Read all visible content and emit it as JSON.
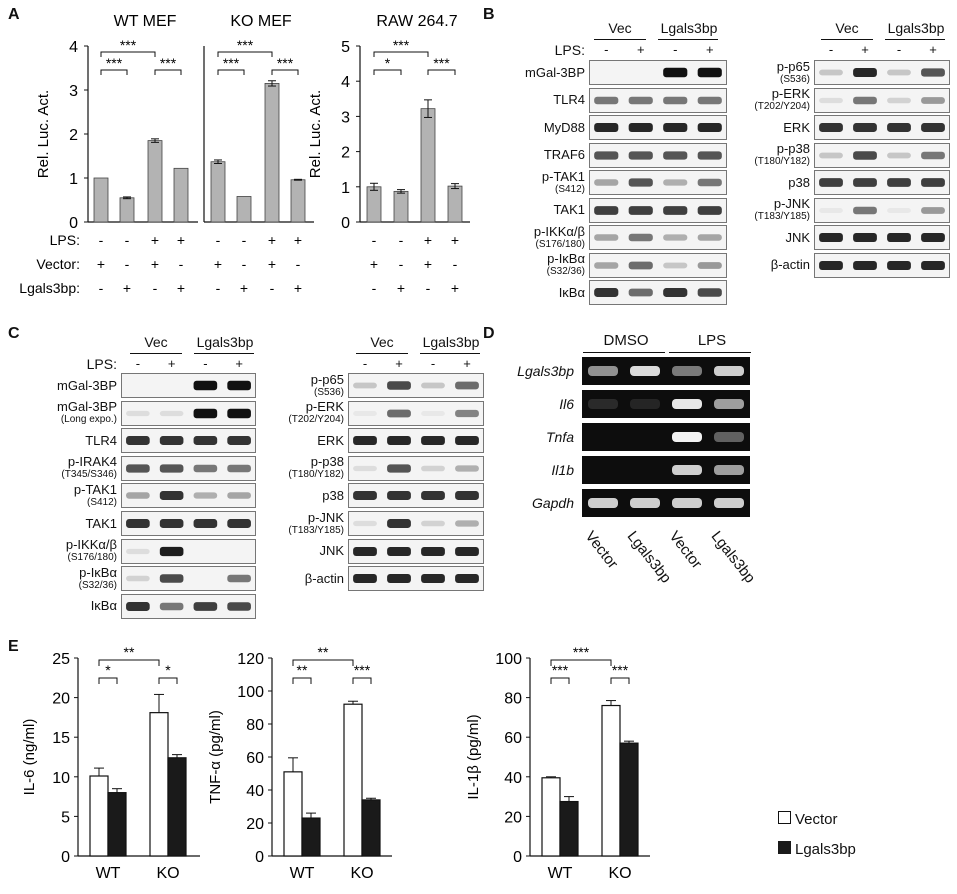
{
  "panels": {
    "a": "A",
    "b": "B",
    "c": "C",
    "d": "D",
    "e": "E"
  },
  "panel_a": {
    "rows": {
      "lps": "LPS:",
      "vector": "Vector:",
      "lgals": "Lgals3bp:"
    },
    "signs": {
      "minus": "-",
      "plus": "+"
    },
    "chart_data": [
      {
        "type": "bar",
        "title": "WT MEF",
        "ylabel": "Rel. Luc. Act.",
        "ylim": [
          0,
          4
        ],
        "yticks": [
          0,
          1,
          2,
          3,
          4
        ],
        "values": [
          1.0,
          0.55,
          1.85,
          1.22
        ],
        "errors": [
          0,
          0.02,
          0.04,
          0
        ],
        "brackets": [
          "***",
          "***",
          "***"
        ]
      },
      {
        "type": "bar",
        "title": "KO MEF",
        "ylabel": "",
        "ylim": [
          0,
          4
        ],
        "yticks": [],
        "values": [
          1.37,
          0.58,
          3.15,
          0.96
        ],
        "errors": [
          0.04,
          0,
          0.06,
          0.01
        ],
        "brackets": [
          "***",
          "***",
          "***"
        ]
      },
      {
        "type": "bar",
        "title": "RAW 264.7",
        "ylabel": "Rel. Luc. Act.",
        "ylim": [
          0,
          5
        ],
        "yticks": [
          0,
          1,
          2,
          3,
          4,
          5
        ],
        "values": [
          1.0,
          0.87,
          3.22,
          1.02
        ],
        "errors": [
          0.1,
          0.05,
          0.25,
          0.07
        ],
        "brackets": [
          "*",
          "***",
          "***"
        ]
      }
    ]
  },
  "panel_b": {
    "header": {
      "vec": "Vec",
      "lgals": "Lgals3bp",
      "lps": "LPS:"
    },
    "left_blots": [
      {
        "name": "mGal-3BP",
        "site": ""
      },
      {
        "name": "TLR4",
        "site": ""
      },
      {
        "name": "MyD88",
        "site": ""
      },
      {
        "name": "TRAF6",
        "site": ""
      },
      {
        "name": "p-TAK1",
        "site": "(S412)"
      },
      {
        "name": "TAK1",
        "site": ""
      },
      {
        "name": "p-IKKα/β",
        "site": "(S176/180)"
      },
      {
        "name": "p-IκBα",
        "site": "(S32/36)"
      },
      {
        "name": "IκBα",
        "site": ""
      }
    ],
    "right_blots": [
      {
        "name": "p-p65",
        "site": "(S536)"
      },
      {
        "name": "p-ERK",
        "site": "(T202/Y204)"
      },
      {
        "name": "ERK",
        "site": ""
      },
      {
        "name": "p-p38",
        "site": "(T180/Y182)"
      },
      {
        "name": "p38",
        "site": ""
      },
      {
        "name": "p-JNK",
        "site": "(T183/Y185)"
      },
      {
        "name": "JNK",
        "site": ""
      },
      {
        "name": "β-actin",
        "site": ""
      }
    ]
  },
  "panel_c": {
    "header": {
      "vec": "Vec",
      "lgals": "Lgals3bp",
      "lps": "LPS:"
    },
    "left_blots": [
      {
        "name": "mGal-3BP",
        "site": ""
      },
      {
        "name": "mGal-3BP",
        "site": "(Long expo.)"
      },
      {
        "name": "TLR4",
        "site": ""
      },
      {
        "name": "p-IRAK4",
        "site": "(T345/S346)"
      },
      {
        "name": "p-TAK1",
        "site": "(S412)"
      },
      {
        "name": "TAK1",
        "site": ""
      },
      {
        "name": "p-IKKα/β",
        "site": "(S176/180)"
      },
      {
        "name": "p-IκBα",
        "site": "(S32/36)"
      },
      {
        "name": "IκBα",
        "site": ""
      }
    ],
    "right_blots": [
      {
        "name": "p-p65",
        "site": "(S536)"
      },
      {
        "name": "p-ERK",
        "site": "(T202/Y204)"
      },
      {
        "name": "ERK",
        "site": ""
      },
      {
        "name": "p-p38",
        "site": "(T180/Y182)"
      },
      {
        "name": "p38",
        "site": ""
      },
      {
        "name": "p-JNK",
        "site": "(T183/Y185)"
      },
      {
        "name": "JNK",
        "site": ""
      },
      {
        "name": "β-actin",
        "site": ""
      }
    ]
  },
  "panel_d": {
    "header": {
      "dmso": "DMSO",
      "lps": "LPS"
    },
    "genes": [
      "Lgals3bp",
      "Il6",
      "Tnfa",
      "Il1b",
      "Gapdh"
    ],
    "lanes": [
      "Vector",
      "Lgals3bp",
      "Vector",
      "Lgals3bp"
    ]
  },
  "panel_e": {
    "legend": {
      "vector": "Vector",
      "lgals": "Lgals3bp"
    },
    "chart_data": [
      {
        "type": "bar",
        "ylabel": "IL-6 (ng/ml)",
        "ylim": [
          0,
          25
        ],
        "yticks": [
          0,
          5,
          10,
          15,
          20,
          25
        ],
        "categories": [
          "WT",
          "KO"
        ],
        "series": [
          {
            "name": "Vector",
            "values": [
              10.1,
              18.1
            ],
            "errors": [
              1.0,
              2.3
            ]
          },
          {
            "name": "Lgals3bp",
            "values": [
              8.0,
              12.4
            ],
            "errors": [
              0.5,
              0.4
            ]
          }
        ],
        "brackets": [
          "*",
          "*",
          "**"
        ]
      },
      {
        "type": "bar",
        "ylabel": "TNF-α (pg/ml)",
        "ylim": [
          0,
          120
        ],
        "yticks": [
          0,
          20,
          40,
          60,
          80,
          100,
          120
        ],
        "categories": [
          "WT",
          "KO"
        ],
        "series": [
          {
            "name": "Vector",
            "values": [
              51,
              92
            ],
            "errors": [
              8.5,
              1.8
            ]
          },
          {
            "name": "Lgals3bp",
            "values": [
              23,
              34
            ],
            "errors": [
              3,
              1
            ]
          }
        ],
        "brackets": [
          "**",
          "***",
          "**"
        ]
      },
      {
        "type": "bar",
        "ylabel": "IL-1β (pg/ml)",
        "ylim": [
          0,
          100
        ],
        "yticks": [
          0,
          20,
          40,
          60,
          80,
          100
        ],
        "categories": [
          "WT",
          "KO"
        ],
        "series": [
          {
            "name": "Vector",
            "values": [
              39.5,
              76
            ],
            "errors": [
              0.5,
              2.5
            ]
          },
          {
            "name": "Lgals3bp",
            "values": [
              27.5,
              57
            ],
            "errors": [
              2.5,
              1
            ]
          }
        ],
        "brackets": [
          "***",
          "***",
          "***"
        ]
      }
    ]
  }
}
